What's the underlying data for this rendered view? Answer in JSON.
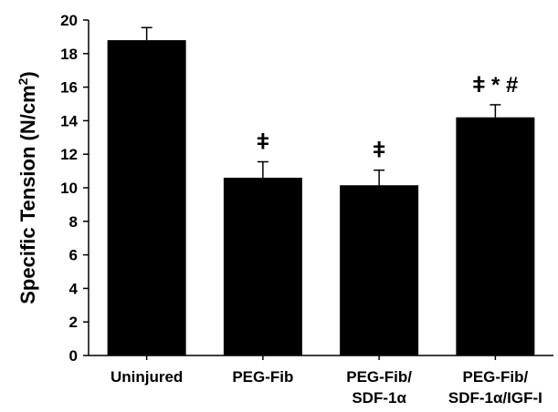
{
  "chart_data": {
    "type": "bar",
    "title": "",
    "xlabel": "",
    "ylabel_main": "Specific Tension (N/cm",
    "ylabel_sup": "2",
    "ylabel_end": ")",
    "ylim": [
      0,
      20
    ],
    "yticks": [
      "0",
      "2",
      "4",
      "6",
      "8",
      "10",
      "12",
      "14",
      "16",
      "18",
      "20"
    ],
    "grid": false,
    "legend": "none",
    "bar_color": "#000000",
    "categories": [
      {
        "line1": "Uninjured",
        "line2": ""
      },
      {
        "line1": "PEG-Fib",
        "line2": ""
      },
      {
        "line1": "PEG-Fib/",
        "line2": "SDF-1α"
      },
      {
        "line1": "PEG-Fib/",
        "line2": "SDF-1α/IGF-I"
      }
    ],
    "values": [
      18.8,
      10.6,
      10.15,
      14.2
    ],
    "errors": [
      0.75,
      0.95,
      0.9,
      0.75
    ],
    "annotations": [
      "",
      "ǂ",
      "ǂ",
      "ǂ * #"
    ]
  }
}
